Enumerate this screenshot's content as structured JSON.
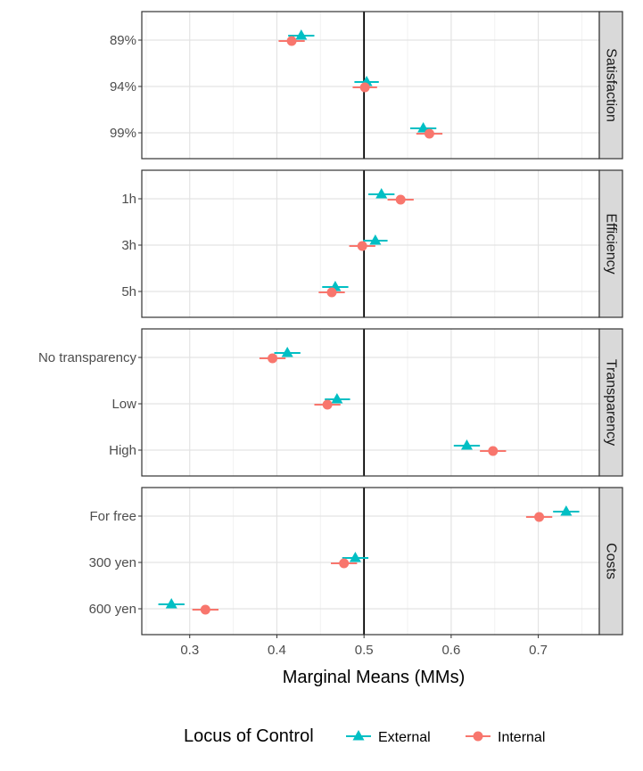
{
  "chart_data": {
    "type": "scatter",
    "subtype": "dot-and-whisker faceted",
    "xlabel": "Marginal Means (MMs)",
    "xlim": [
      0.245,
      0.77
    ],
    "xticks": [
      0.3,
      0.4,
      0.5,
      0.6,
      0.7
    ],
    "xtick_labels": [
      "0.3",
      "0.4",
      "0.5",
      "0.6",
      "0.7"
    ],
    "reference_line": 0.5,
    "grid": true,
    "legend": {
      "title": "Locus of Control",
      "position": "bottom",
      "entries": [
        {
          "name": "External",
          "color": "#00BFC4",
          "shape": "triangle"
        },
        {
          "name": "Internal",
          "color": "#F8766D",
          "shape": "circle"
        }
      ]
    },
    "facets": [
      {
        "label": "Satisfaction",
        "levels": [
          "89%",
          "94%",
          "99%"
        ],
        "series": [
          {
            "name": "External",
            "est": [
              0.428,
              0.503,
              0.568
            ],
            "lo": [
              0.413,
              0.489,
              0.553
            ],
            "hi": [
              0.443,
              0.517,
              0.583
            ]
          },
          {
            "name": "Internal",
            "est": [
              0.417,
              0.501,
              0.575
            ],
            "lo": [
              0.402,
              0.487,
              0.56
            ],
            "hi": [
              0.432,
              0.515,
              0.59
            ]
          }
        ]
      },
      {
        "label": "Efficiency",
        "levels": [
          "1h",
          "3h",
          "5h"
        ],
        "series": [
          {
            "name": "External",
            "est": [
              0.52,
              0.513,
              0.467
            ],
            "lo": [
              0.505,
              0.499,
              0.452
            ],
            "hi": [
              0.535,
              0.527,
              0.482
            ]
          },
          {
            "name": "Internal",
            "est": [
              0.542,
              0.498,
              0.463
            ],
            "lo": [
              0.527,
              0.483,
              0.448
            ],
            "hi": [
              0.557,
              0.513,
              0.478
            ]
          }
        ]
      },
      {
        "label": "Transparency",
        "levels": [
          "No transparency",
          "Low",
          "High"
        ],
        "series": [
          {
            "name": "External",
            "est": [
              0.412,
              0.469,
              0.618
            ],
            "lo": [
              0.397,
              0.455,
              0.603
            ],
            "hi": [
              0.427,
              0.484,
              0.633
            ]
          },
          {
            "name": "Internal",
            "est": [
              0.395,
              0.458,
              0.648
            ],
            "lo": [
              0.38,
              0.443,
              0.633
            ],
            "hi": [
              0.41,
              0.473,
              0.663
            ]
          }
        ]
      },
      {
        "label": "Costs",
        "levels": [
          "For free",
          "300 yen",
          "600 yen"
        ],
        "series": [
          {
            "name": "External",
            "est": [
              0.732,
              0.49,
              0.279
            ],
            "lo": [
              0.717,
              0.475,
              0.264
            ],
            "hi": [
              0.747,
              0.505,
              0.294
            ]
          },
          {
            "name": "Internal",
            "est": [
              0.701,
              0.477,
              0.318
            ],
            "lo": [
              0.686,
              0.462,
              0.303
            ],
            "hi": [
              0.716,
              0.492,
              0.333
            ]
          }
        ]
      }
    ]
  }
}
